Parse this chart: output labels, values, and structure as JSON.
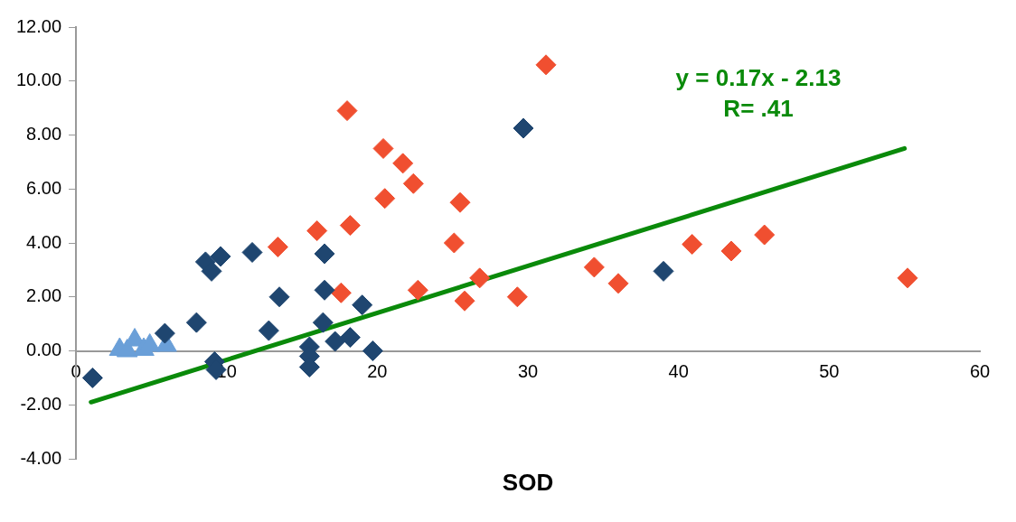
{
  "chart_data": {
    "type": "scatter",
    "xlabel": "SOD",
    "xlim": [
      0,
      60
    ],
    "xticks": [
      0,
      10,
      20,
      30,
      40,
      50,
      60
    ],
    "ylim": [
      -4,
      12
    ],
    "yticks": [
      {
        "value": -4,
        "label": "-4.00"
      },
      {
        "value": -2,
        "label": "-2.00"
      },
      {
        "value": 0,
        "label": "0.00"
      },
      {
        "value": 2,
        "label": "2.00"
      },
      {
        "value": 4,
        "label": "4.00"
      },
      {
        "value": 6,
        "label": "6.00"
      },
      {
        "value": 8,
        "label": "8.00"
      },
      {
        "value": 10,
        "label": "10.00"
      },
      {
        "value": 12,
        "label": "12.00"
      }
    ],
    "grid": false,
    "legend": false,
    "annotations": [
      "y = 0.17x - 2.13",
      "R= .41"
    ],
    "series": [
      {
        "marker": "diamond",
        "color": "#1f4670",
        "x": [
          1.1,
          5.9,
          8.0,
          8.6,
          9.0,
          9.6,
          11.7,
          12.8,
          13.5,
          16.5,
          16.5,
          16.4,
          15.5,
          15.5,
          15.5,
          17.2,
          18.2,
          19.0,
          19.7,
          9.2,
          9.3,
          29.7,
          39.0
        ],
        "values": [
          -1.0,
          0.65,
          1.05,
          3.3,
          2.95,
          3.5,
          3.65,
          0.75,
          2.0,
          3.6,
          2.25,
          1.05,
          0.15,
          -0.2,
          -0.6,
          0.35,
          0.5,
          1.7,
          0.0,
          -0.4,
          -0.7,
          8.25,
          2.95
        ]
      },
      {
        "marker": "diamond",
        "color": "#f04f30",
        "x": [
          13.4,
          16.0,
          17.6,
          18.0,
          18.2,
          20.4,
          20.5,
          21.7,
          22.4,
          22.7,
          25.1,
          25.5,
          25.8,
          26.8,
          29.3,
          31.2,
          34.4,
          36.0,
          40.9,
          43.5,
          45.7,
          55.2
        ],
        "values": [
          3.85,
          4.45,
          2.15,
          8.9,
          4.65,
          7.5,
          5.65,
          6.95,
          6.2,
          2.25,
          4.0,
          5.5,
          1.85,
          2.7,
          2.0,
          10.6,
          3.1,
          2.5,
          3.95,
          3.7,
          4.3,
          2.7
        ]
      },
      {
        "marker": "triangle",
        "color": "#6a9fd8",
        "x": [
          2.9,
          3.4,
          3.9,
          4.5,
          4.9,
          6.0
        ],
        "values": [
          0.05,
          0.0,
          0.4,
          0.05,
          0.2,
          0.2
        ]
      },
      {
        "type": "line",
        "marker": "none",
        "color": "#0a8a0a",
        "x": [
          1.0,
          55.0
        ],
        "values": [
          -1.9,
          7.5
        ]
      }
    ]
  }
}
